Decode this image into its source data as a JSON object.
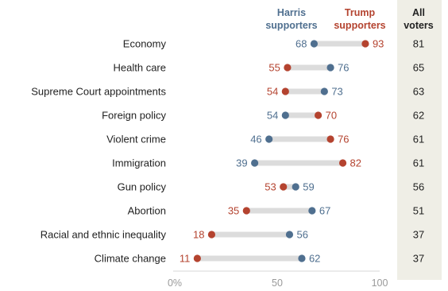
{
  "chart_data": {
    "type": "dumbbell",
    "series": [
      {
        "name": "Harris supporters",
        "color": "#4f6f8f"
      },
      {
        "name": "Trump supporters",
        "color": "#b4432f"
      }
    ],
    "column_header": "All voters",
    "categories": [
      "Economy",
      "Health care",
      "Supreme Court appointments",
      "Foreign policy",
      "Violent crime",
      "Immigration",
      "Gun policy",
      "Abortion",
      "Racial and ethnic inequality",
      "Climate change"
    ],
    "harris": [
      68,
      76,
      73,
      54,
      46,
      39,
      59,
      67,
      56,
      62
    ],
    "trump": [
      93,
      55,
      54,
      70,
      76,
      82,
      53,
      35,
      18,
      11
    ],
    "all_voters": [
      81,
      65,
      63,
      62,
      61,
      61,
      56,
      51,
      37,
      37
    ],
    "x_ticks": [
      "0%",
      "50",
      "100"
    ],
    "xlim": [
      0,
      100
    ],
    "colors": {
      "harris": "#4f6f8f",
      "trump": "#b4432f",
      "connector": "#dcdcdc",
      "all_voters_band": "#efeee6"
    }
  }
}
